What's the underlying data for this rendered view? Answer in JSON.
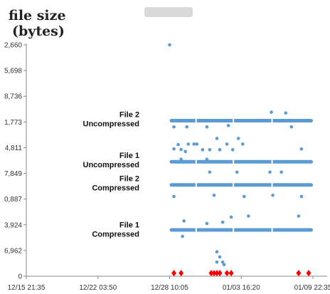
{
  "chart_data": {
    "type": "scatter",
    "title": "",
    "ylabel_lines": [
      "file size",
      "(bytes)"
    ],
    "xlabel": "",
    "y_tick_labels": [
      "2,660",
      "5,698",
      "8,736",
      "1,773",
      "4,811",
      "7,849",
      "0,887",
      "3,924",
      "6,962",
      "0"
    ],
    "y_tick_values": [
      9,
      8,
      7,
      6,
      5,
      4,
      3,
      2,
      1,
      0
    ],
    "ylim": [
      0,
      9
    ],
    "x_tick_labels": [
      "12/15 21:35",
      "12/22 03:50",
      "12/28 10:05",
      "01/03 16:20",
      "01/09 22:35"
    ],
    "x_tick_values": [
      0,
      1,
      2,
      3,
      4
    ],
    "xlim": [
      0,
      4
    ],
    "grid": false,
    "colors": {
      "points": "#5b9bd5",
      "markers": "#ff0000",
      "axis": "#888888"
    },
    "cluster_labels": [
      {
        "lines": [
          "File 2",
          "Uncompressed"
        ],
        "y": 6.0
      },
      {
        "lines": [
          "File 1",
          "Uncompressed"
        ],
        "y": 4.4
      },
      {
        "lines": [
          "File 2",
          "Compressed"
        ],
        "y": 3.5
      },
      {
        "lines": [
          "File 1",
          "Compressed"
        ],
        "y": 1.7
      }
    ],
    "series": [
      {
        "marker": "circle",
        "color": "#5b9bd5",
        "band_x": [
          2.0,
          4.0
        ],
        "band_y": 6.05,
        "outliers": [
          [
            2.06,
            5.81
          ],
          [
            2.24,
            5.81
          ],
          [
            2.52,
            5.81
          ],
          [
            2.82,
            5.86
          ],
          [
            3.7,
            5.81
          ],
          [
            3.42,
            6.38
          ],
          [
            3.62,
            6.35
          ]
        ]
      },
      {
        "marker": "circle",
        "color": "#5b9bd5",
        "band_x": [
          2.0,
          4.0
        ],
        "band_y": 4.45,
        "outliers": [
          [
            2.06,
            4.95
          ],
          [
            2.12,
            5.12
          ],
          [
            2.16,
            4.93
          ],
          [
            2.22,
            4.85
          ],
          [
            2.26,
            5.14
          ],
          [
            2.34,
            5.14
          ],
          [
            2.38,
            5.14
          ],
          [
            2.46,
            4.92
          ],
          [
            2.56,
            4.92
          ],
          [
            2.66,
            5.36
          ],
          [
            2.7,
            4.92
          ],
          [
            2.8,
            5.14
          ],
          [
            2.88,
            4.92
          ],
          [
            2.96,
            5.36
          ],
          [
            3.02,
            5.14
          ],
          [
            2.16,
            4.55
          ],
          [
            2.52,
            4.55
          ],
          [
            3.84,
            4.95
          ],
          [
            2.94,
            4.05
          ],
          [
            3.4,
            4.05
          ],
          [
            3.56,
            4.05
          ],
          [
            2.56,
            4.05
          ]
        ]
      },
      {
        "marker": "circle",
        "color": "#5b9bd5",
        "band_x": [
          2.0,
          4.0
        ],
        "band_y": 3.55,
        "outliers": [
          [
            2.06,
            3.1
          ],
          [
            2.62,
            3.15
          ],
          [
            3.04,
            3.1
          ],
          [
            3.44,
            3.15
          ],
          [
            3.84,
            3.1
          ]
        ]
      },
      {
        "marker": "circle",
        "color": "#5b9bd5",
        "band_x": [
          2.0,
          4.0
        ],
        "band_y": 1.8,
        "outliers": [
          [
            2.2,
            2.15
          ],
          [
            2.74,
            2.1
          ],
          [
            2.86,
            2.3
          ],
          [
            3.1,
            2.34
          ],
          [
            3.8,
            2.34
          ],
          [
            2.52,
            2.05
          ],
          [
            2.18,
            1.55
          ]
        ]
      },
      {
        "marker": "circle",
        "color": "#5b9bd5",
        "band_x": null,
        "band_y": null,
        "outliers": [
          [
            2.0,
            9.0
          ],
          [
            2.66,
            0.95
          ],
          [
            2.7,
            0.75
          ],
          [
            2.66,
            0.55
          ],
          [
            2.76,
            0.45
          ],
          [
            2.74,
            0.55
          ]
        ]
      },
      {
        "marker": "diamond",
        "color": "#ff0000",
        "band_x": null,
        "band_y": null,
        "outliers": [
          [
            2.06,
            0.12
          ],
          [
            2.16,
            0.12
          ],
          [
            2.58,
            0.12
          ],
          [
            2.62,
            0.12
          ],
          [
            2.66,
            0.12
          ],
          [
            2.7,
            0.12
          ],
          [
            2.8,
            0.12
          ],
          [
            2.86,
            0.12
          ],
          [
            3.8,
            0.12
          ],
          [
            3.94,
            0.12
          ]
        ]
      }
    ]
  }
}
